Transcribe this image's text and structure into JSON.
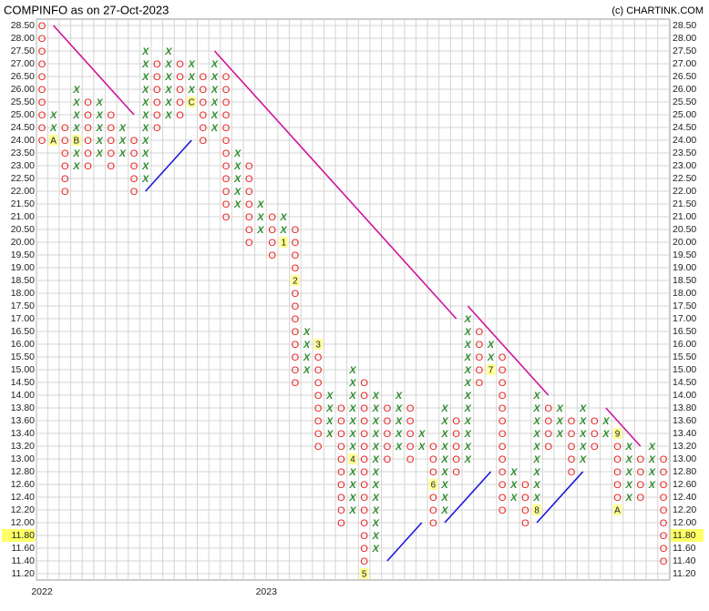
{
  "chart_data": {
    "type": "point-and-figure",
    "title": "COMPINFO as on 27-Oct-2023",
    "credit": "(c) CHARTINK.COM",
    "x_color": "#2e8b2e",
    "o_color": "#e8201e",
    "grid": true,
    "yticks": [
      {
        "value": 28.5,
        "label": "28.50"
      },
      {
        "value": 28,
        "label": "28.00"
      },
      {
        "value": 27.5,
        "label": "27.50"
      },
      {
        "value": 27,
        "label": "27.00"
      },
      {
        "value": 26.5,
        "label": "26.50"
      },
      {
        "value": 26,
        "label": "26.00"
      },
      {
        "value": 25.5,
        "label": "25.50"
      },
      {
        "value": 25,
        "label": "25.00"
      },
      {
        "value": 24.5,
        "label": "24.50"
      },
      {
        "value": 24,
        "label": "24.00"
      },
      {
        "value": 23.5,
        "label": "23.50"
      },
      {
        "value": 23,
        "label": "23.00"
      },
      {
        "value": 22.5,
        "label": "22.50"
      },
      {
        "value": 22,
        "label": "22.00"
      },
      {
        "value": 21.5,
        "label": "21.50"
      },
      {
        "value": 21,
        "label": "21.00"
      },
      {
        "value": 20.5,
        "label": "20.50"
      },
      {
        "value": 20,
        "label": "20.00"
      },
      {
        "value": 19.5,
        "label": "19.50"
      },
      {
        "value": 19,
        "label": "19.00"
      },
      {
        "value": 18.5,
        "label": "18.50"
      },
      {
        "value": 18,
        "label": "18.00"
      },
      {
        "value": 17.5,
        "label": "17.50"
      },
      {
        "value": 17,
        "label": "17.00"
      },
      {
        "value": 16.5,
        "label": "16.50"
      },
      {
        "value": 16,
        "label": "16.00"
      },
      {
        "value": 15.5,
        "label": "15.50"
      },
      {
        "value": 15,
        "label": "15.00"
      },
      {
        "value": 14.5,
        "label": "14.50"
      },
      {
        "value": 14,
        "label": "14.00"
      },
      {
        "value": 13.8,
        "label": "13.80"
      },
      {
        "value": 13.6,
        "label": "13.60"
      },
      {
        "value": 13.4,
        "label": "13.40"
      },
      {
        "value": 13.2,
        "label": "13.20"
      },
      {
        "value": 13,
        "label": "13.00"
      },
      {
        "value": 12.8,
        "label": "12.80"
      },
      {
        "value": 12.6,
        "label": "12.60"
      },
      {
        "value": 12.4,
        "label": "12.40"
      },
      {
        "value": 12.2,
        "label": "12.20"
      },
      {
        "value": 12,
        "label": "12.00"
      },
      {
        "value": 11.8,
        "label": "11.80"
      },
      {
        "value": 11.6,
        "label": "11.60"
      },
      {
        "value": 11.4,
        "label": "11.40"
      },
      {
        "value": 11.2,
        "label": "11.20"
      }
    ],
    "last_price": {
      "value": 11.8,
      "label": "11.80"
    },
    "columns": [
      {
        "type": "O",
        "high": 28.5,
        "low": 24
      },
      {
        "type": "X",
        "high": 25,
        "low": 24
      },
      {
        "type": "O",
        "high": 24.5,
        "low": 22
      },
      {
        "type": "X",
        "high": 26,
        "low": 23
      },
      {
        "type": "O",
        "high": 25.5,
        "low": 23
      },
      {
        "type": "X",
        "high": 25.5,
        "low": 23.5
      },
      {
        "type": "O",
        "high": 25,
        "low": 23
      },
      {
        "type": "X",
        "high": 24.5,
        "low": 23.5
      },
      {
        "type": "O",
        "high": 24,
        "low": 22
      },
      {
        "type": "X",
        "high": 27.5,
        "low": 22.5
      },
      {
        "type": "O",
        "high": 27,
        "low": 24.5
      },
      {
        "type": "X",
        "high": 27.5,
        "low": 25
      },
      {
        "type": "O",
        "high": 27,
        "low": 25
      },
      {
        "type": "X",
        "high": 27,
        "low": 25.5
      },
      {
        "type": "O",
        "high": 26.5,
        "low": 24
      },
      {
        "type": "X",
        "high": 27,
        "low": 24.5
      },
      {
        "type": "O",
        "high": 26.5,
        "low": 21
      },
      {
        "type": "X",
        "high": 23.5,
        "low": 21.5
      },
      {
        "type": "O",
        "high": 23,
        "low": 20
      },
      {
        "type": "X",
        "high": 21.5,
        "low": 20.5
      },
      {
        "type": "O",
        "high": 21,
        "low": 19.5
      },
      {
        "type": "X",
        "high": 21,
        "low": 20
      },
      {
        "type": "O",
        "high": 20.5,
        "low": 14.5
      },
      {
        "type": "X",
        "high": 16.5,
        "low": 15
      },
      {
        "type": "O",
        "high": 16,
        "low": 13.2
      },
      {
        "type": "X",
        "high": 14,
        "low": 13.4
      },
      {
        "type": "O",
        "high": 13.8,
        "low": 12
      },
      {
        "type": "X",
        "high": 15,
        "low": 12.2
      },
      {
        "type": "O",
        "high": 14.5,
        "low": 11.2
      },
      {
        "type": "X",
        "high": 14,
        "low": 11.6
      },
      {
        "type": "O",
        "high": 13.8,
        "low": 13
      },
      {
        "type": "X",
        "high": 14,
        "low": 13.2
      },
      {
        "type": "O",
        "high": 13.8,
        "low": 13
      },
      {
        "type": "X",
        "high": 13.4,
        "low": 13.2
      },
      {
        "type": "O",
        "high": 13.2,
        "low": 12
      },
      {
        "type": "X",
        "high": 13.8,
        "low": 12.2
      },
      {
        "type": "O",
        "high": 13.6,
        "low": 12.8
      },
      {
        "type": "X",
        "high": 17,
        "low": 13
      },
      {
        "type": "O",
        "high": 16.5,
        "low": 14.5
      },
      {
        "type": "X",
        "high": 16,
        "low": 15
      },
      {
        "type": "O",
        "high": 15.5,
        "low": 12.2
      },
      {
        "type": "X",
        "high": 12.8,
        "low": 12.4
      },
      {
        "type": "O",
        "high": 12.6,
        "low": 12
      },
      {
        "type": "X",
        "high": 14,
        "low": 12.2
      },
      {
        "type": "O",
        "high": 13.8,
        "low": 13.2
      },
      {
        "type": "X",
        "high": 13.8,
        "low": 13.4
      },
      {
        "type": "O",
        "high": 13.6,
        "low": 12.8
      },
      {
        "type": "X",
        "high": 13.8,
        "low": 13
      },
      {
        "type": "O",
        "high": 13.6,
        "low": 13.2
      },
      {
        "type": "X",
        "high": 13.6,
        "low": 13.4
      },
      {
        "type": "O",
        "high": 13.4,
        "low": 12.2
      },
      {
        "type": "X",
        "high": 13.2,
        "low": 12.4
      },
      {
        "type": "O",
        "high": 13,
        "low": 12.4
      },
      {
        "type": "X",
        "high": 13.2,
        "low": 12.6
      },
      {
        "type": "O",
        "high": 13,
        "low": 11.4
      }
    ],
    "markers": [
      {
        "label": "A",
        "column": 1,
        "price": 24
      },
      {
        "label": "B",
        "column": 3,
        "price": 24
      },
      {
        "label": "C",
        "column": 13,
        "price": 25.5
      },
      {
        "label": "1",
        "column": 21,
        "price": 20
      },
      {
        "label": "2",
        "column": 22,
        "price": 18.5
      },
      {
        "label": "3",
        "column": 24,
        "price": 16
      },
      {
        "label": "4",
        "column": 27,
        "price": 13
      },
      {
        "label": "5",
        "column": 28,
        "price": 11.2
      },
      {
        "label": "6",
        "column": 34,
        "price": 12.6
      },
      {
        "label": "7",
        "column": 39,
        "price": 15
      },
      {
        "label": "8",
        "column": 43,
        "price": 12.2
      },
      {
        "label": "9",
        "column": 50,
        "price": 13.4
      },
      {
        "label": "A",
        "column": 50,
        "price": 12.2
      }
    ],
    "trendlines": [
      {
        "color": "#d0149a",
        "from": [
          1,
          28.5
        ],
        "to": [
          8,
          25
        ]
      },
      {
        "color": "#d0149a",
        "from": [
          15,
          27.5
        ],
        "to": [
          36,
          17
        ]
      },
      {
        "color": "#d0149a",
        "from": [
          37,
          17.5
        ],
        "to": [
          44,
          14
        ]
      },
      {
        "color": "#d0149a",
        "from": [
          49,
          13.8
        ],
        "to": [
          52,
          13.2
        ]
      },
      {
        "color": "#1a1ad8",
        "from": [
          9,
          22
        ],
        "to": [
          13,
          24
        ]
      },
      {
        "color": "#1a1ad8",
        "from": [
          30,
          11.4
        ],
        "to": [
          33,
          12
        ]
      },
      {
        "color": "#1a1ad8",
        "from": [
          35,
          12
        ],
        "to": [
          39,
          12.8
        ]
      },
      {
        "color": "#1a1ad8",
        "from": [
          43,
          12
        ],
        "to": [
          47,
          12.8
        ]
      }
    ],
    "x_labels": [
      {
        "label": "2022",
        "column": 0
      },
      {
        "label": "2023",
        "column": 19.5
      }
    ]
  }
}
